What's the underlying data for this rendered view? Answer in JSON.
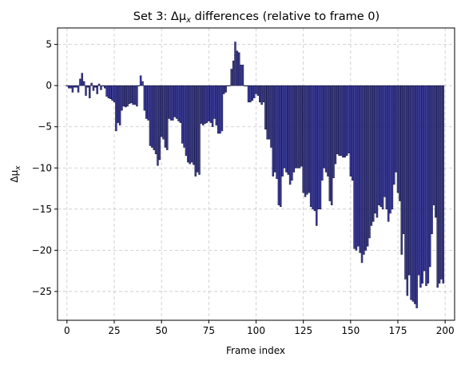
{
  "chart_data": {
    "type": "bar",
    "title_main": "Set 3: Δμ",
    "title_sub": "x",
    "title_rest": " differences (relative to frame 0)",
    "xlabel": "Frame index",
    "ylabel_main": "Δμ",
    "ylabel_sub": "x",
    "xlim": [
      -5,
      205
    ],
    "ylim": [
      -28.5,
      7
    ],
    "xticks": [
      0,
      25,
      50,
      75,
      100,
      125,
      150,
      175,
      200
    ],
    "yticks": [
      5,
      0,
      -5,
      -10,
      -15,
      -20,
      -25
    ],
    "grid": true,
    "x_start": 0,
    "values": [
      0.0,
      -0.3,
      -0.3,
      -0.8,
      -0.2,
      -0.2,
      -0.8,
      0.8,
      1.5,
      0.5,
      -1.2,
      -0.2,
      -1.5,
      0.3,
      -0.6,
      -0.2,
      -1.0,
      0.2,
      -0.5,
      0.0,
      -0.3,
      -1.3,
      -1.5,
      -1.6,
      -1.8,
      -2.0,
      -5.5,
      -4.5,
      -4.8,
      -3.0,
      -2.5,
      -2.6,
      -2.5,
      -2.2,
      -2.1,
      -2.3,
      -2.3,
      -2.5,
      0.0,
      1.2,
      0.5,
      -3.0,
      -4.0,
      -4.2,
      -7.3,
      -7.5,
      -7.8,
      -8.3,
      -9.7,
      -9.0,
      -6.2,
      -6.5,
      -7.5,
      -7.8,
      -4.0,
      -4.2,
      -4.2,
      -3.8,
      -4.0,
      -4.3,
      -4.5,
      -7.0,
      -7.5,
      -8.5,
      -9.3,
      -9.5,
      -9.3,
      -9.6,
      -11.0,
      -10.5,
      -10.8,
      -4.6,
      -4.8,
      -4.6,
      -4.5,
      -4.3,
      -4.5,
      -5.0,
      -4.0,
      -4.8,
      -5.8,
      -5.8,
      -5.5,
      -1.0,
      -0.8,
      0.0,
      0.0,
      2.0,
      3.0,
      5.3,
      4.2,
      4.0,
      2.5,
      2.5,
      0.0,
      0.0,
      -2.0,
      -2.0,
      -1.8,
      -1.5,
      -1.0,
      -1.2,
      -2.0,
      -2.3,
      -2.0,
      -5.3,
      -6.5,
      -6.5,
      -7.5,
      -11.0,
      -10.5,
      -11.3,
      -14.5,
      -14.7,
      -11.0,
      -10.0,
      -10.5,
      -10.8,
      -12.0,
      -11.5,
      -10.5,
      -10.0,
      -10.0,
      -10.0,
      -9.8,
      -13.0,
      -13.5,
      -13.2,
      -13.0,
      -14.7,
      -15.0,
      -15.2,
      -17.0,
      -15.0,
      -15.0,
      -11.5,
      -10.0,
      -10.5,
      -11.0,
      -14.0,
      -14.5,
      -11.2,
      -9.5,
      -8.3,
      -8.5,
      -8.5,
      -8.7,
      -8.7,
      -8.5,
      -8.2,
      -11.0,
      -11.5,
      -19.8,
      -20.0,
      -19.5,
      -20.3,
      -21.5,
      -20.5,
      -20.0,
      -19.5,
      -18.5,
      -17.0,
      -16.5,
      -15.5,
      -16.0,
      -14.5,
      -14.7,
      -15.0,
      -13.5,
      -15.0,
      -16.5,
      -15.5,
      -15.0,
      -12.0,
      -10.5,
      -13.0,
      -14.0,
      -20.5,
      -18.0,
      -23.5,
      -25.5,
      -23.0,
      -26.0,
      -26.2,
      -26.5,
      -27.0,
      -23.0,
      -24.5,
      -24.0,
      -22.5,
      -24.3,
      -24.0,
      -22.0,
      -18.0,
      -14.5,
      -16.0,
      -24.5,
      -24.0,
      -23.5,
      -24.0
    ]
  }
}
